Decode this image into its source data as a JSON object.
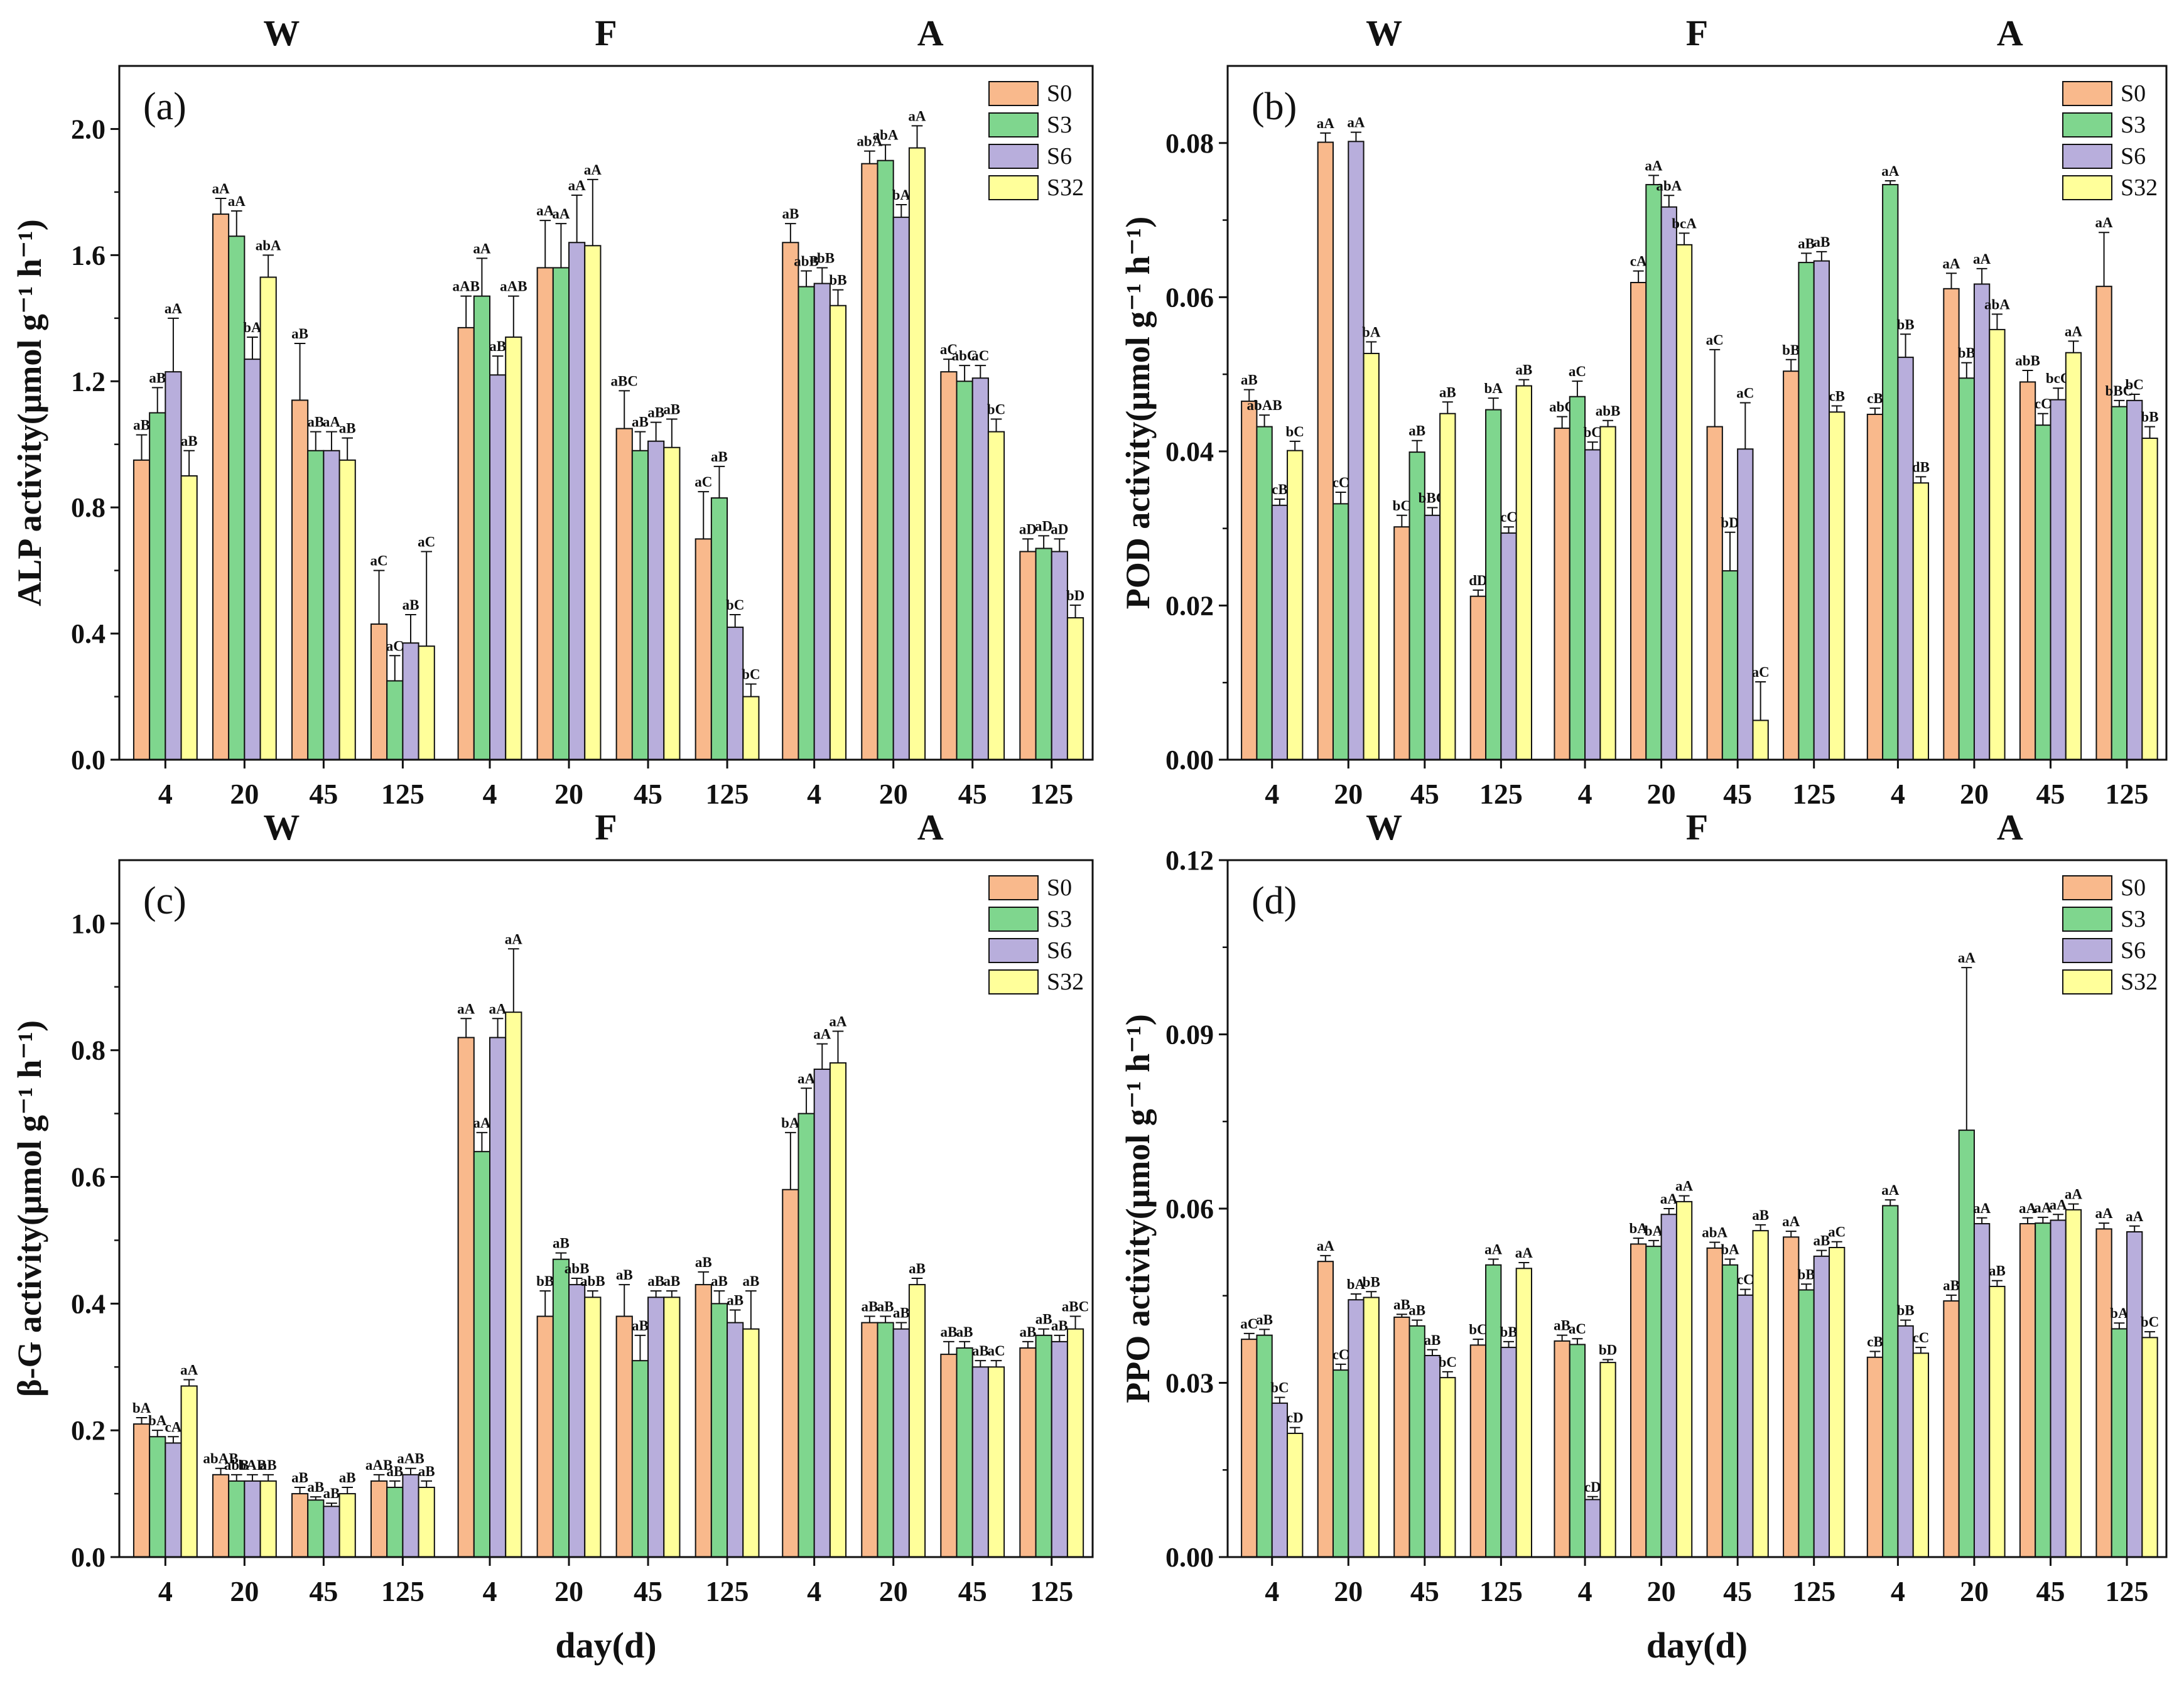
{
  "colors": {
    "S0": "#f9b98c",
    "S3": "#7fd68e",
    "S6": "#b8aedc",
    "S32": "#ffff9a"
  },
  "figure": {
    "x_axis_title": "day(d)"
  },
  "chart_data": [
    {
      "type": "bar",
      "panel": "(a)",
      "ylabel": "ALP activity(μmol g⁻¹ h⁻¹)",
      "ylim": [
        0,
        2.2
      ],
      "yticks": [
        "0.0",
        "0.4",
        "0.8",
        "1.2",
        "1.6",
        "2.0"
      ],
      "groups": [
        "W",
        "F",
        "A"
      ],
      "categories": [
        "4",
        "20",
        "45",
        "125"
      ],
      "series_names": [
        "S0",
        "S3",
        "S6",
        "S32"
      ],
      "values": [
        [
          [
            0.95,
            1.1,
            1.23,
            0.9
          ],
          [
            1.73,
            1.66,
            1.27,
            1.53
          ],
          [
            1.14,
            0.98,
            0.98,
            0.95
          ],
          [
            0.43,
            0.25,
            0.37,
            0.36
          ]
        ],
        [
          [
            1.37,
            1.47,
            1.22,
            1.34
          ],
          [
            1.56,
            1.56,
            1.64,
            1.63
          ],
          [
            1.05,
            0.98,
            1.01,
            0.99
          ],
          [
            0.7,
            0.83,
            0.42,
            0.2
          ]
        ],
        [
          [
            1.64,
            1.5,
            1.51,
            1.44
          ],
          [
            1.89,
            1.9,
            1.72,
            1.94
          ],
          [
            1.23,
            1.2,
            1.21,
            1.04
          ],
          [
            0.66,
            0.67,
            0.66,
            0.45
          ]
        ]
      ],
      "errors": [
        [
          [
            0.08,
            0.08,
            0.17,
            0.08
          ],
          [
            0.05,
            0.08,
            0.07,
            0.07
          ],
          [
            0.18,
            0.06,
            0.06,
            0.07
          ],
          [
            0.17,
            0.08,
            0.09,
            0.3
          ]
        ],
        [
          [
            0.1,
            0.12,
            0.06,
            0.13
          ],
          [
            0.15,
            0.14,
            0.15,
            0.21
          ],
          [
            0.12,
            0.06,
            0.06,
            0.09
          ],
          [
            0.15,
            0.1,
            0.04,
            0.04
          ]
        ],
        [
          [
            0.06,
            0.05,
            0.05,
            0.05
          ],
          [
            0.04,
            0.05,
            0.04,
            0.07
          ],
          [
            0.04,
            0.05,
            0.04,
            0.04
          ],
          [
            0.04,
            0.04,
            0.04,
            0.04
          ]
        ]
      ],
      "labels": [
        [
          [
            "aB",
            "aB",
            "aA",
            "aB"
          ],
          [
            "aA",
            "aA",
            "bA",
            "abA"
          ],
          [
            "aB",
            "aB",
            "aA",
            "aB"
          ],
          [
            "aC",
            "aC",
            "aB",
            "aC"
          ]
        ],
        [
          [
            "aAB",
            "aA",
            "aB",
            "aAB"
          ],
          [
            "aA",
            "aA",
            "aA",
            "aA"
          ],
          [
            "aBC",
            "aB",
            "aB",
            "aB"
          ],
          [
            "aC",
            "aB",
            "bC",
            "bC"
          ]
        ],
        [
          [
            "aB",
            "abB",
            "abB",
            "bB"
          ],
          [
            "abA",
            "abA",
            "bA",
            "aA"
          ],
          [
            "aC",
            "abC",
            "aC",
            "bC"
          ],
          [
            "aD",
            "aD",
            "aD",
            "bD"
          ]
        ]
      ]
    },
    {
      "type": "bar",
      "panel": "(b)",
      "ylabel": "POD activity(μmol g⁻¹ h⁻¹)",
      "ylim": [
        0,
        0.09
      ],
      "yticks": [
        "0.00",
        "0.02",
        "0.04",
        "0.06",
        "0.08"
      ],
      "groups": [
        "W",
        "F",
        "A"
      ],
      "categories": [
        "4",
        "20",
        "45",
        "125"
      ],
      "series_names": [
        "S0",
        "S3",
        "S6",
        "S32"
      ],
      "values": [
        [
          [
            0.0465,
            0.0432,
            0.033,
            0.0401
          ],
          [
            0.0801,
            0.0332,
            0.0802,
            0.0527
          ],
          [
            0.0302,
            0.0399,
            0.0317,
            0.0449
          ],
          [
            0.0212,
            0.0454,
            0.0294,
            0.0485
          ]
        ],
        [
          [
            0.043,
            0.0471,
            0.0402,
            0.0432
          ],
          [
            0.0619,
            0.0746,
            0.0717,
            0.0668
          ],
          [
            0.0432,
            0.0245,
            0.0403,
            0.0051
          ],
          [
            0.0504,
            0.0645,
            0.0647,
            0.0451
          ]
        ],
        [
          [
            0.0448,
            0.0746,
            0.0522,
            0.0359
          ],
          [
            0.0611,
            0.0495,
            0.0617,
            0.0558
          ],
          [
            0.049,
            0.0434,
            0.0467,
            0.0528
          ],
          [
            0.0614,
            0.0458,
            0.0466,
            0.0417
          ]
        ]
      ],
      "errors": [
        [
          [
            0.0015,
            0.0015,
            0.0008,
            0.0012
          ],
          [
            0.0012,
            0.0015,
            0.0012,
            0.0015
          ],
          [
            0.0015,
            0.0015,
            0.001,
            0.0015
          ],
          [
            0.0008,
            0.0015,
            0.0008,
            0.0008
          ]
        ],
        [
          [
            0.0015,
            0.002,
            0.001,
            0.0008
          ],
          [
            0.0015,
            0.0012,
            0.0015,
            0.0015
          ],
          [
            0.01,
            0.005,
            0.006,
            0.005
          ],
          [
            0.0015,
            0.0012,
            0.0012,
            0.0008
          ]
        ],
        [
          [
            0.0008,
            0.0005,
            0.003,
            0.0008
          ],
          [
            0.002,
            0.002,
            0.002,
            0.002
          ],
          [
            0.0015,
            0.0015,
            0.0015,
            0.0015
          ],
          [
            0.007,
            0.0008,
            0.0008,
            0.0015
          ]
        ]
      ],
      "labels": [
        [
          [
            "aB",
            "abAB",
            "cB",
            "bC"
          ],
          [
            "aA",
            "cC",
            "aA",
            "bA"
          ],
          [
            "bC",
            "aB",
            "bBC",
            "aB"
          ],
          [
            "dD",
            "bA",
            "cC",
            "aB"
          ]
        ],
        [
          [
            "abC",
            "aC",
            "bC",
            "abB"
          ],
          [
            "cA",
            "aA",
            "abA",
            "bcA"
          ],
          [
            "aC",
            "bD",
            "aC",
            "aC"
          ],
          [
            "bB",
            "aB",
            "aB",
            "cB"
          ]
        ],
        [
          [
            "cB",
            "aA",
            "bB",
            "dB"
          ],
          [
            "aA",
            "bB",
            "aA",
            "abA"
          ],
          [
            "abB",
            "cC",
            "bcC",
            "aA"
          ],
          [
            "aA",
            "bBC",
            "bC",
            "bB"
          ]
        ]
      ]
    },
    {
      "type": "bar",
      "panel": "(c)",
      "ylabel": "β-G activity(μmol g⁻¹ h⁻¹)",
      "ylim": [
        0,
        1.1
      ],
      "yticks": [
        "0.0",
        "0.2",
        "0.4",
        "0.6",
        "0.8",
        "1.0"
      ],
      "groups": [
        "W",
        "F",
        "A"
      ],
      "categories": [
        "4",
        "20",
        "45",
        "125"
      ],
      "series_names": [
        "S0",
        "S3",
        "S6",
        "S32"
      ],
      "values": [
        [
          [
            0.21,
            0.19,
            0.18,
            0.27
          ],
          [
            0.13,
            0.12,
            0.12,
            0.12
          ],
          [
            0.1,
            0.09,
            0.08,
            0.1
          ],
          [
            0.12,
            0.11,
            0.13,
            0.11
          ]
        ],
        [
          [
            0.82,
            0.64,
            0.82,
            0.86
          ],
          [
            0.38,
            0.47,
            0.43,
            0.41
          ],
          [
            0.38,
            0.31,
            0.41,
            0.41
          ],
          [
            0.43,
            0.4,
            0.37,
            0.36
          ]
        ],
        [
          [
            0.58,
            0.7,
            0.77,
            0.78
          ],
          [
            0.37,
            0.37,
            0.36,
            0.43
          ],
          [
            0.32,
            0.33,
            0.3,
            0.3
          ],
          [
            0.33,
            0.35,
            0.34,
            0.36
          ]
        ]
      ],
      "errors": [
        [
          [
            0.01,
            0.01,
            0.01,
            0.01
          ],
          [
            0.01,
            0.01,
            0.01,
            0.01
          ],
          [
            0.01,
            0.005,
            0.005,
            0.01
          ],
          [
            0.01,
            0.01,
            0.01,
            0.01
          ]
        ],
        [
          [
            0.03,
            0.03,
            0.03,
            0.1
          ],
          [
            0.04,
            0.01,
            0.01,
            0.01
          ],
          [
            0.05,
            0.04,
            0.01,
            0.01
          ],
          [
            0.02,
            0.02,
            0.02,
            0.06
          ]
        ],
        [
          [
            0.09,
            0.04,
            0.04,
            0.05
          ],
          [
            0.01,
            0.01,
            0.01,
            0.01
          ],
          [
            0.02,
            0.01,
            0.01,
            0.01
          ],
          [
            0.01,
            0.01,
            0.01,
            0.02
          ]
        ]
      ],
      "labels": [
        [
          [
            "bA",
            "bA",
            "cA",
            "aA"
          ],
          [
            "abAB",
            "abB",
            "bAB",
            "aB"
          ],
          [
            "aB",
            "aB",
            "aB",
            "aB"
          ],
          [
            "aAB",
            "aB",
            "aAB",
            "aB"
          ]
        ],
        [
          [
            "aA",
            "aA",
            "aA",
            "aA"
          ],
          [
            "bB",
            "aB",
            "abB",
            "abB"
          ],
          [
            "aB",
            "aB",
            "aB",
            "aB"
          ],
          [
            "aB",
            "aB",
            "aB",
            "aB"
          ]
        ],
        [
          [
            "bA",
            "aA",
            "aA",
            "aA"
          ],
          [
            "aB",
            "aB",
            "aB",
            "aB"
          ],
          [
            "aB",
            "aB",
            "aB",
            "aC"
          ],
          [
            "aB",
            "aB",
            "aB",
            "aBC"
          ]
        ]
      ]
    },
    {
      "type": "bar",
      "panel": "(d)",
      "ylabel": "PPO activity(μmol g⁻¹ h⁻¹)",
      "ylim": [
        0,
        0.12
      ],
      "yticks": [
        "0.00",
        "0.03",
        "0.06",
        "0.09",
        "0.12"
      ],
      "groups": [
        "W",
        "F",
        "A"
      ],
      "categories": [
        "4",
        "20",
        "45",
        "125"
      ],
      "series_names": [
        "S0",
        "S3",
        "S6",
        "S32"
      ],
      "values": [
        [
          [
            0.0375,
            0.0382,
            0.0265,
            0.0213
          ],
          [
            0.0509,
            0.0322,
            0.0443,
            0.0447
          ],
          [
            0.0413,
            0.0398,
            0.0347,
            0.0309
          ],
          [
            0.0365,
            0.0503,
            0.0361,
            0.0497
          ]
        ],
        [
          [
            0.0372,
            0.0366,
            0.0099,
            0.0335
          ],
          [
            0.0539,
            0.0535,
            0.059,
            0.0612
          ],
          [
            0.0532,
            0.0503,
            0.0451,
            0.0562
          ],
          [
            0.0551,
            0.046,
            0.0518,
            0.0533
          ]
        ],
        [
          [
            0.0344,
            0.0605,
            0.0398,
            0.0351
          ],
          [
            0.0441,
            0.0735,
            0.0574,
            0.0466
          ],
          [
            0.0574,
            0.0575,
            0.058,
            0.0598
          ],
          [
            0.0565,
            0.0393,
            0.056,
            0.0378
          ]
        ]
      ],
      "errors": [
        [
          [
            0.001,
            0.001,
            0.001,
            0.001
          ],
          [
            0.001,
            0.001,
            0.001,
            0.001
          ],
          [
            0.0005,
            0.001,
            0.001,
            0.001
          ],
          [
            0.001,
            0.001,
            0.001,
            0.001
          ]
        ],
        [
          [
            0.001,
            0.001,
            0.0005,
            0.0005
          ],
          [
            0.001,
            0.001,
            0.001,
            0.001
          ],
          [
            0.001,
            0.001,
            0.001,
            0.001
          ],
          [
            0.001,
            0.001,
            0.001,
            0.001
          ]
        ],
        [
          [
            0.001,
            0.001,
            0.001,
            0.001
          ],
          [
            0.001,
            0.028,
            0.001,
            0.001
          ],
          [
            0.001,
            0.001,
            0.001,
            0.001
          ],
          [
            0.001,
            0.001,
            0.001,
            0.001
          ]
        ]
      ],
      "labels": [
        [
          [
            "aC",
            "aB",
            "bC",
            "cD"
          ],
          [
            "aA",
            "cC",
            "bA",
            "bB"
          ],
          [
            "aB",
            "aB",
            "aB",
            "bC"
          ],
          [
            "bC",
            "aA",
            "bB",
            "aA"
          ]
        ],
        [
          [
            "aB",
            "aC",
            "cD",
            "bD"
          ],
          [
            "bA",
            "bA",
            "aA",
            "aA"
          ],
          [
            "abA",
            "bA",
            "cC",
            "aB"
          ],
          [
            "aA",
            "bB",
            "aB",
            "aC"
          ]
        ],
        [
          [
            "cB",
            "aA",
            "bB",
            "cC"
          ],
          [
            "aB",
            "aA",
            "aA",
            "aB"
          ],
          [
            "aA",
            "aA",
            "aA",
            "aA"
          ],
          [
            "aA",
            "bA",
            "aA",
            "bC"
          ]
        ]
      ]
    }
  ]
}
